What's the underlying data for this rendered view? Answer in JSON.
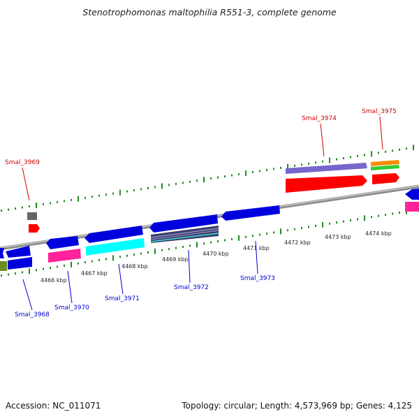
{
  "title": "Stenotrophomonas maltophilia R551-3, complete genome",
  "footer": {
    "accession": "Accession: NC_011071",
    "summary": "Topology: circular; Length: 4,573,969 bp; Genes: 4,125"
  },
  "colors": {
    "backbone": "#8a8a8a",
    "tick": "#228B22",
    "label_forward": "#cc0000",
    "label_reverse": "#0000cc"
  },
  "kbp_labels": [
    "4466 kbp",
    "4467 kbp",
    "4468 kbp",
    "4469 kbp",
    "4470 kbp",
    "4471 kbp",
    "4472 kbp",
    "4473 kbp",
    "4474 kbp"
  ],
  "gene_labels": [
    {
      "text": "Smal_3969",
      "strand": "forward"
    },
    {
      "text": "Smal_3974",
      "strand": "forward"
    },
    {
      "text": "Smal_3975",
      "strand": "forward"
    },
    {
      "text": "Smal_3968",
      "strand": "reverse"
    },
    {
      "text": "Smal_3970",
      "strand": "reverse"
    },
    {
      "text": "Smal_3971",
      "strand": "reverse"
    },
    {
      "text": "Smal_3972",
      "strand": "reverse"
    },
    {
      "text": "Smal_3973",
      "strand": "reverse"
    }
  ]
}
